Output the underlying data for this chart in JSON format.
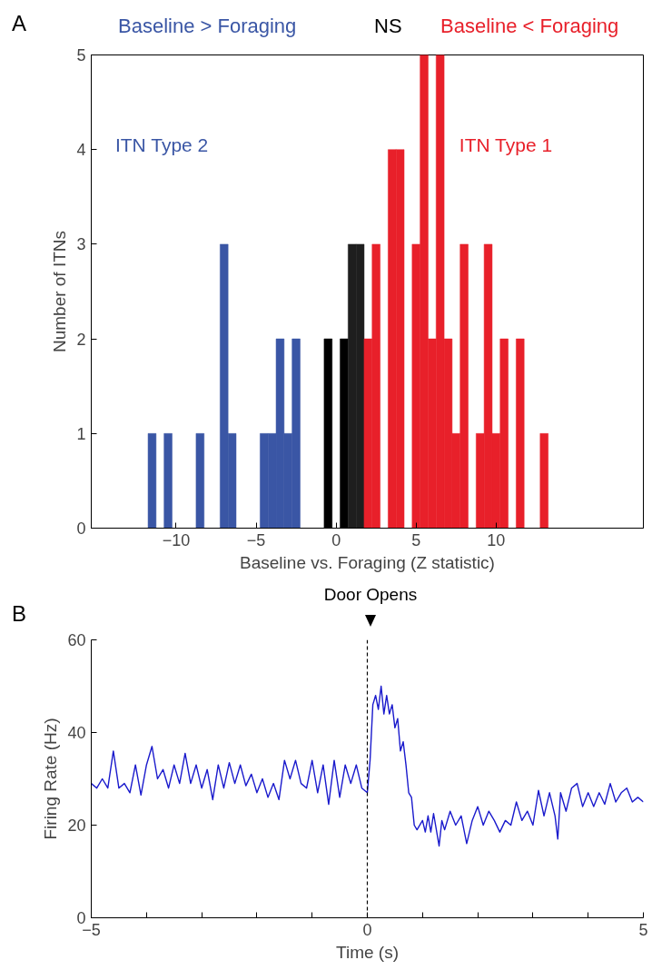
{
  "chart_data": [
    {
      "type": "histogram",
      "bins": [
        -11.75,
        -11.25,
        -10.75,
        -10.25,
        -9.75,
        -9.25,
        -8.75,
        -8.25,
        -7.75,
        -7.25,
        -6.75,
        -6.25,
        -5.75,
        -5.25,
        -4.75,
        -4.25,
        -3.75,
        -3.25,
        -2.75,
        -2.25,
        -1.75,
        -1.25,
        -0.75,
        -0.25,
        0.25,
        0.75,
        1.25,
        1.75,
        2.25,
        2.75,
        3.25,
        3.75,
        4.25,
        4.75,
        5.25,
        5.75,
        6.25,
        6.75,
        7.25,
        7.75,
        8.25,
        8.75,
        9.25,
        9.75,
        10.25,
        10.75,
        11.25,
        11.75,
        12.25,
        12.75,
        13.25
      ],
      "values": [
        1,
        0,
        1,
        0,
        0,
        0,
        1,
        0,
        0,
        3,
        1,
        0,
        0,
        0,
        1,
        1,
        2,
        1,
        2,
        0,
        0,
        0,
        2,
        0,
        2,
        3,
        3,
        2,
        3,
        0,
        4,
        4,
        0,
        3,
        5,
        2,
        5,
        2,
        1,
        3,
        0,
        1,
        3,
        1,
        2,
        0,
        2,
        0,
        0,
        1
      ],
      "colors": [
        "#3a56a5",
        "#3a56a5",
        "#3a56a5",
        "#3a56a5",
        "#3a56a5",
        "#3a56a5",
        "#3a56a5",
        "#3a56a5",
        "#3a56a5",
        "#3a56a5",
        "#3a56a5",
        "#3a56a5",
        "#3a56a5",
        "#3a56a5",
        "#3a56a5",
        "#3a56a5",
        "#3a56a5",
        "#3a56a5",
        "#3a56a5",
        "#3a56a5",
        "#3a56a5",
        "#3a56a5",
        "#000000",
        "#000000",
        "#000000",
        "#1e1e1e",
        "#1e1e1e",
        "#e8202a",
        "#e8202a",
        "#e8202a",
        "#e8202a",
        "#e8202a",
        "#e8202a",
        "#e8202a",
        "#e8202a",
        "#e8202a",
        "#e8202a",
        "#e8202a",
        "#e8202a",
        "#e8202a",
        "#e8202a",
        "#e8202a",
        "#e8202a",
        "#e8202a",
        "#e8202a",
        "#e8202a",
        "#e8202a",
        "#e8202a",
        "#e8202a",
        "#e8202a"
      ],
      "xlim": [
        -15.3,
        19.2
      ],
      "xticks": [
        -10,
        -5,
        0,
        5,
        10
      ],
      "ylim": [
        0,
        5
      ],
      "yticks": [
        0,
        1,
        2,
        3,
        4,
        5
      ],
      "xlabel": "Baseline vs. Foraging (Z statistic)",
      "ylabel": "Number of ITNs",
      "annotations": [
        "A",
        "Baseline > Foraging",
        "NS",
        "Baseline < Foraging",
        "ITN Type 2",
        "ITN Type 1"
      ]
    },
    {
      "type": "line",
      "x": [
        -5,
        -4.9,
        -4.8,
        -4.7,
        -4.6,
        -4.5,
        -4.4,
        -4.3,
        -4.2,
        -4.1,
        -4.0,
        -3.9,
        -3.8,
        -3.7,
        -3.6,
        -3.5,
        -3.4,
        -3.3,
        -3.2,
        -3.1,
        -3.0,
        -2.9,
        -2.8,
        -2.7,
        -2.6,
        -2.5,
        -2.4,
        -2.3,
        -2.2,
        -2.1,
        -2.0,
        -1.9,
        -1.8,
        -1.7,
        -1.6,
        -1.5,
        -1.4,
        -1.3,
        -1.2,
        -1.1,
        -1.0,
        -0.9,
        -0.8,
        -0.7,
        -0.6,
        -0.5,
        -0.4,
        -0.3,
        -0.2,
        -0.1,
        0,
        0.05,
        0.1,
        0.15,
        0.2,
        0.25,
        0.3,
        0.35,
        0.4,
        0.45,
        0.5,
        0.55,
        0.6,
        0.65,
        0.7,
        0.75,
        0.8,
        0.85,
        0.9,
        1.0,
        1.05,
        1.1,
        1.15,
        1.2,
        1.3,
        1.35,
        1.4,
        1.5,
        1.6,
        1.7,
        1.8,
        1.9,
        2.0,
        2.1,
        2.2,
        2.3,
        2.4,
        2.5,
        2.6,
        2.7,
        2.8,
        2.9,
        3.0,
        3.1,
        3.2,
        3.3,
        3.4,
        3.45,
        3.5,
        3.6,
        3.7,
        3.8,
        3.9,
        4.0,
        4.1,
        4.2,
        4.3,
        4.4,
        4.5,
        4.6,
        4.7,
        4.8,
        4.9,
        5.0
      ],
      "series": [
        {
          "color": "#1a1acc",
          "values": [
            29,
            28,
            30,
            28,
            36,
            28,
            29,
            27,
            33,
            26.5,
            33,
            37,
            30,
            32,
            28,
            33,
            29,
            35.5,
            29,
            33,
            28,
            32,
            25.5,
            33,
            28,
            33.5,
            29,
            33,
            28.5,
            31,
            27,
            30,
            26,
            29,
            25.5,
            34,
            30,
            34,
            29,
            28,
            34,
            27,
            33,
            24.5,
            34,
            26,
            33,
            29,
            33,
            28,
            27,
            34,
            46,
            48,
            45,
            50,
            44,
            48,
            44,
            46,
            41,
            43,
            36,
            38,
            33,
            27,
            26,
            20,
            19,
            21,
            18.5,
            22,
            18.5,
            22.5,
            15.5,
            21,
            19,
            23,
            20,
            22,
            16,
            21,
            24,
            20,
            23,
            21,
            18.5,
            21,
            20,
            25,
            21,
            23,
            20,
            27.5,
            22,
            27,
            22,
            17,
            27,
            23,
            28,
            29,
            24,
            27,
            24,
            27,
            24.5,
            29,
            25,
            27,
            28,
            25,
            26,
            25
          ]
        }
      ],
      "xlim": [
        -5,
        5
      ],
      "xticks": [
        -5,
        {
          "value": -4,
          "label": null
        },
        {
          "value": -3,
          "label": null
        },
        {
          "value": -2,
          "label": null
        },
        {
          "value": -1,
          "label": null
        },
        0,
        {
          "value": 1,
          "label": null
        },
        {
          "value": 2,
          "label": null
        },
        {
          "value": 3,
          "label": null
        },
        {
          "value": 4,
          "label": null
        },
        5
      ],
      "ylim": [
        0,
        60
      ],
      "yticks": [
        0,
        20,
        40,
        60
      ],
      "xlabel": "Time (s)",
      "ylabel": "Firing Rate (Hz)",
      "ref_lines": [
        {
          "axis": "x",
          "value": 0,
          "label": "Door Opens",
          "color": "#000000",
          "line_style": "dashed"
        }
      ],
      "annotations": [
        "B"
      ]
    }
  ]
}
